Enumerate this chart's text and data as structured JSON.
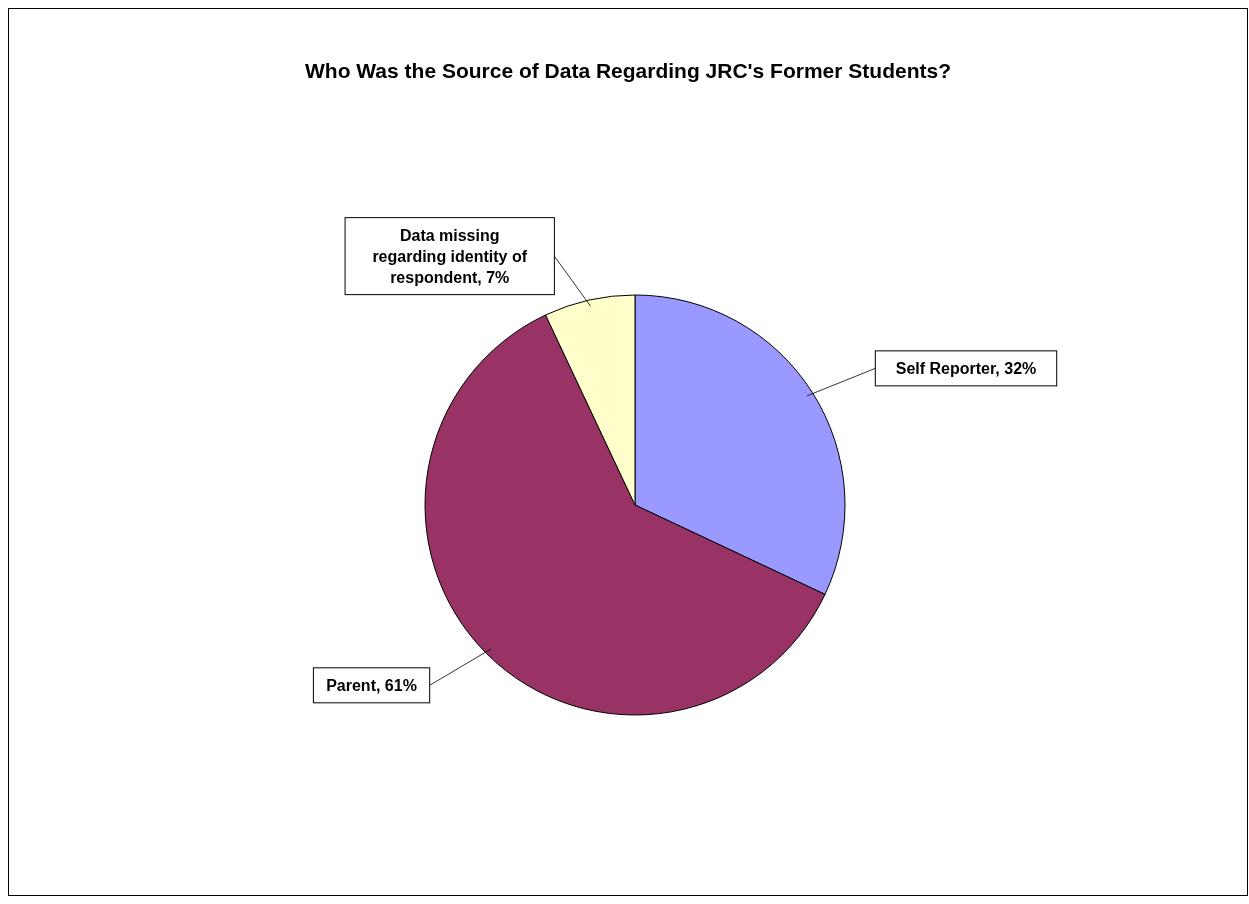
{
  "chart_data": {
    "type": "pie",
    "title": "Who Was the Source of Data Regarding JRC's Former Students?",
    "categories": [
      "Self Reporter",
      "Parent",
      "Data missing regarding identity of respondent"
    ],
    "values": [
      32,
      61,
      7
    ],
    "value_labels": [
      "32%",
      "61%",
      "7%"
    ],
    "colors": [
      "#9999ff",
      "#993366",
      "#ffffcc"
    ],
    "legend": false
  }
}
